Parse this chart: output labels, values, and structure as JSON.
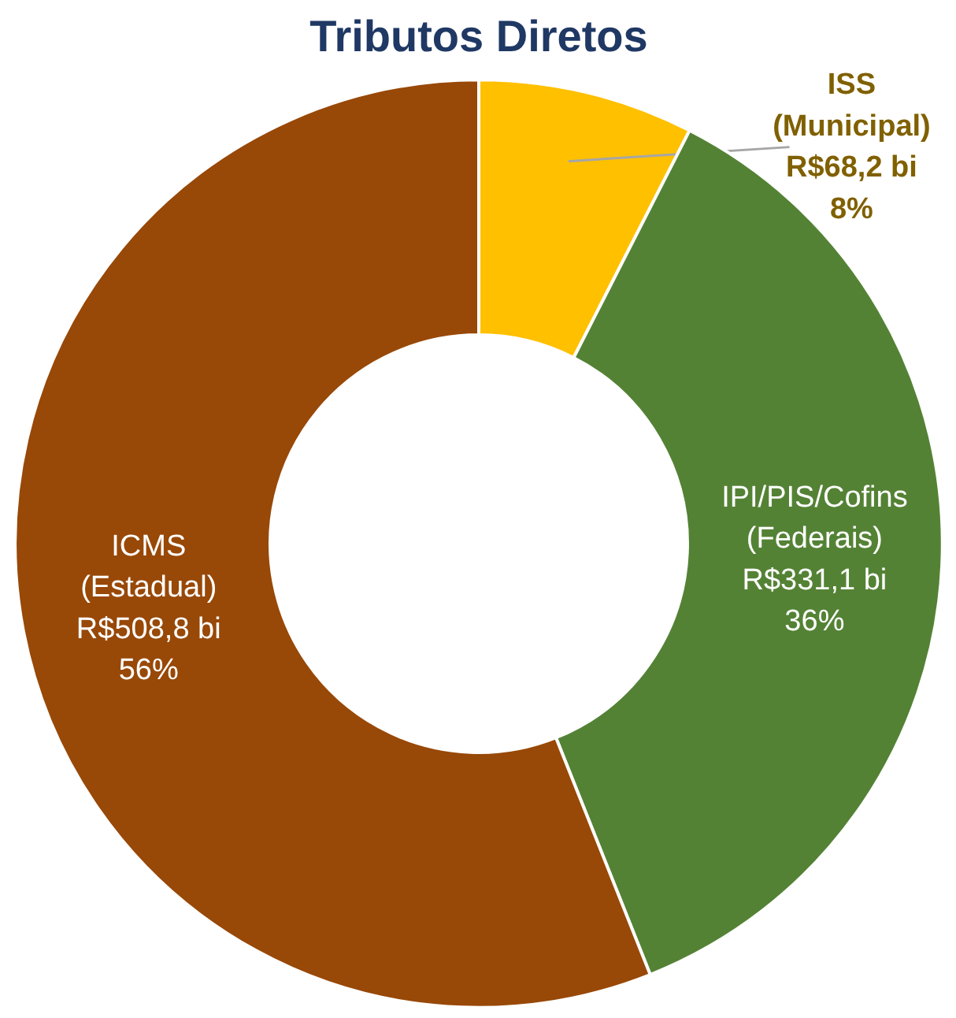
{
  "chart_data": {
    "type": "donut",
    "title": "Tributos Diretos",
    "categories": [
      "ISS\n(Municipal)",
      "IPI/PIS/Cofins\n(Federais)",
      "ICMS\n(Estadual)"
    ],
    "values": [
      68.2,
      331.1,
      508.8
    ],
    "value_labels": [
      "R$68,2 bi\n8%",
      "R$331,1 bi\n36%",
      "R$508,8 bi\n56%"
    ],
    "colors": [
      "#ffc000",
      "#548235",
      "#984807"
    ]
  }
}
